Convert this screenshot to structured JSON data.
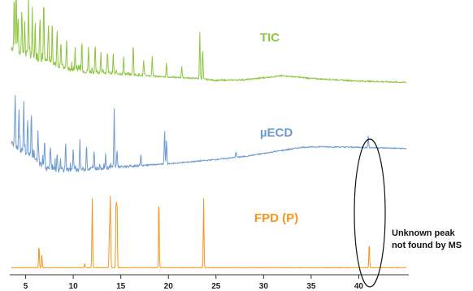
{
  "chart_data": {
    "type": "line",
    "title": "",
    "xlabel": "",
    "ylabel": "",
    "x_range": [
      3.5,
      45
    ],
    "x_ticks": [
      "5",
      "10",
      "15",
      "20",
      "25",
      "30",
      "35",
      "40"
    ],
    "x_tick_values": [
      5,
      10,
      15,
      20,
      25,
      30,
      35,
      40
    ],
    "grid": false,
    "series": [
      {
        "name": "TIC",
        "color": "#8dc63f",
        "baseline": [
          [
            3.5,
            0.55
          ],
          [
            5,
            0.45
          ],
          [
            10,
            0.2
          ],
          [
            15,
            0.15
          ],
          [
            20,
            0.1
          ],
          [
            23,
            0.08
          ],
          [
            25,
            0.05
          ],
          [
            28,
            0.06
          ],
          [
            32,
            0.12
          ],
          [
            35,
            0.08
          ],
          [
            40,
            0.04
          ],
          [
            45,
            0.02
          ]
        ],
        "peaks": [
          [
            3.8,
            0.75
          ],
          [
            4.0,
            1.0
          ],
          [
            4.2,
            0.55
          ],
          [
            4.6,
            0.65
          ],
          [
            4.9,
            0.45
          ],
          [
            5.3,
            0.85
          ],
          [
            5.7,
            0.7
          ],
          [
            6.0,
            0.55
          ],
          [
            6.5,
            0.65
          ],
          [
            6.9,
            0.95
          ],
          [
            7.4,
            0.6
          ],
          [
            7.8,
            0.5
          ],
          [
            8.3,
            0.55
          ],
          [
            8.7,
            0.4
          ],
          [
            9.3,
            0.45
          ],
          [
            10.2,
            0.35
          ],
          [
            10.9,
            0.45
          ],
          [
            11.6,
            0.35
          ],
          [
            12.3,
            0.4
          ],
          [
            12.9,
            0.3
          ],
          [
            13.6,
            0.3
          ],
          [
            14.2,
            0.28
          ],
          [
            15.3,
            0.25
          ],
          [
            16.3,
            0.48
          ],
          [
            17.4,
            0.22
          ],
          [
            18.3,
            0.3
          ],
          [
            19.8,
            0.22
          ],
          [
            21.4,
            0.18
          ],
          [
            23.3,
            0.7
          ],
          [
            23.6,
            0.45
          ]
        ]
      },
      {
        "name": "µECD",
        "color": "#6d9bd1",
        "baseline": [
          [
            3.5,
            0.55
          ],
          [
            4.5,
            0.4
          ],
          [
            6,
            0.25
          ],
          [
            7,
            0.12
          ],
          [
            8,
            0.08
          ],
          [
            10,
            0.08
          ],
          [
            14,
            0.12
          ],
          [
            17,
            0.15
          ],
          [
            20,
            0.18
          ],
          [
            25,
            0.25
          ],
          [
            28,
            0.3
          ],
          [
            32,
            0.4
          ],
          [
            34,
            0.45
          ],
          [
            36,
            0.46
          ],
          [
            40,
            0.45
          ],
          [
            45,
            0.43
          ]
        ],
        "peaks": [
          [
            3.9,
            0.85
          ],
          [
            4.3,
            0.65
          ],
          [
            4.8,
            0.9
          ],
          [
            5.2,
            0.6
          ],
          [
            5.6,
            0.7
          ],
          [
            6.3,
            0.5
          ],
          [
            7.0,
            0.4
          ],
          [
            7.6,
            0.35
          ],
          [
            8.3,
            0.3
          ],
          [
            9.2,
            0.45
          ],
          [
            10.0,
            0.35
          ],
          [
            10.7,
            0.5
          ],
          [
            11.4,
            0.42
          ],
          [
            12.2,
            0.28
          ],
          [
            13.4,
            0.22
          ],
          [
            14.3,
            0.95
          ],
          [
            14.6,
            0.3
          ],
          [
            17.1,
            0.18
          ],
          [
            19.6,
            0.55
          ],
          [
            19.8,
            0.4
          ],
          [
            27.1,
            0.1
          ],
          [
            41.0,
            0.2
          ]
        ]
      },
      {
        "name": "FPD (P)",
        "color": "#f7941d",
        "baseline": [
          [
            3.5,
            0.02
          ],
          [
            45,
            0.02
          ]
        ],
        "peaks": [
          [
            6.4,
            0.32
          ],
          [
            6.7,
            0.18
          ],
          [
            11.2,
            0.06
          ],
          [
            12.0,
            1.0
          ],
          [
            13.8,
            0.55
          ],
          [
            13.9,
            1.0
          ],
          [
            14.5,
            0.98
          ],
          [
            14.6,
            0.95
          ],
          [
            19.0,
            1.0
          ],
          [
            23.7,
            1.0
          ],
          [
            41.1,
            0.35
          ]
        ]
      }
    ],
    "annotations": [
      {
        "text_line1": "Unknown peak",
        "text_line2": "not found by MS",
        "near_x": 41.1
      }
    ]
  },
  "labels": {
    "tic": "TIC",
    "ecd": "µECD",
    "fpd": "FPD (P)",
    "note1": "Unknown peak",
    "note2": "not found by MS"
  }
}
